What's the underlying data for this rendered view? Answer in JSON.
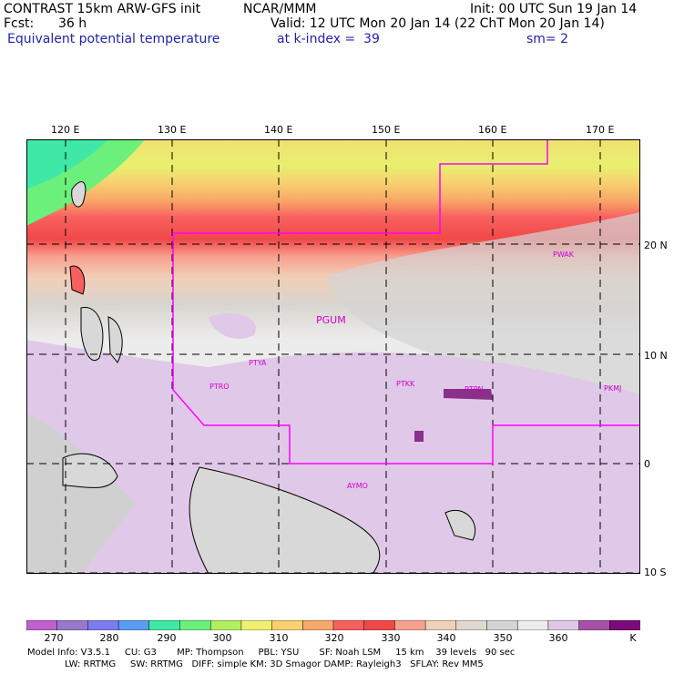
{
  "header": {
    "title": "CONTRAST 15km ARW-GFS init",
    "org": "NCAR/MMM",
    "init": "Init: 00 UTC Sun 19 Jan 14",
    "fcst_label": "Fcst:",
    "fcst_value": "36 h",
    "valid": "Valid: 12 UTC Mon 20 Jan 14 (22 ChT Mon 20 Jan 14)",
    "field": "Equivalent potential temperature",
    "level": "at k-index =  39",
    "smoothing": "sm= 2"
  },
  "map": {
    "lon_labels": [
      "120 E",
      "130 E",
      "140 E",
      "150 E",
      "160 E",
      "170 E"
    ],
    "lat_labels": [
      "20 N",
      "10 N",
      "0",
      "10 S"
    ],
    "stations": [
      "PGUM",
      "PWAK",
      "PTYA",
      "PTRO",
      "PTKK",
      "PTPN",
      "PKMJ",
      "AYMO"
    ],
    "boundary_color": "#ff00ff"
  },
  "colorbar": {
    "labels": [
      "270",
      "280",
      "290",
      "300",
      "310",
      "320",
      "330",
      "340",
      "350",
      "360"
    ],
    "unit": "K",
    "colors": [
      "#c060d0",
      "#9878cc",
      "#7c7cf0",
      "#5c9cf0",
      "#40e8a8",
      "#6cf07c",
      "#b0f060",
      "#f0f070",
      "#f8d070",
      "#f8a868",
      "#f86060",
      "#f04848",
      "#f8a090",
      "#f0d0b8",
      "#e0d8d0",
      "#d4d4d4",
      "#ececec",
      "#e0c8e8",
      "#a850a8",
      "#7c0a7c"
    ]
  },
  "model_info": {
    "line1": "Model Info: V3.5.1     CU: G3       MP: Thompson     PBL: YSU       SF: Noah LSM     15 km    39 levels   90 sec",
    "line2": "LW: RRTMG     SW: RRTMG   DIFF: simple KM: 3D Smagor DAMP: Rayleigh3   SFLAY: Rev MM5"
  }
}
